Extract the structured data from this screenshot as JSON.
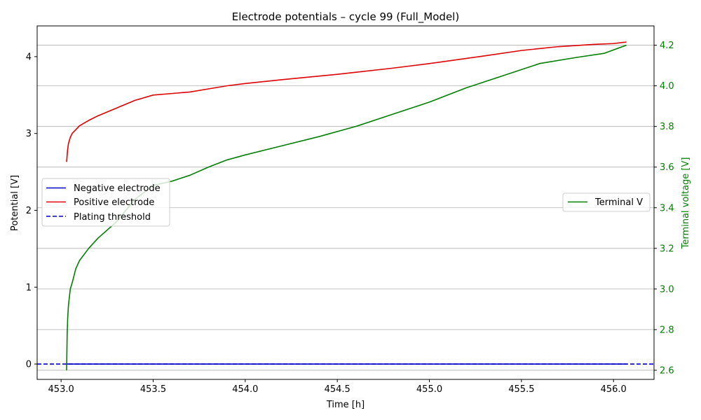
{
  "chart_data": {
    "type": "line",
    "title": "Electrode potentials – cycle 99 (Full_Model)",
    "xlabel": "Time [h]",
    "ylabel_left": "Potential [V]",
    "ylabel_right": "Terminal voltage [V]",
    "xlim": [
      452.87,
      456.22
    ],
    "ylim_left": [
      -0.2,
      4.4
    ],
    "ylim_right": [
      2.555,
      4.295
    ],
    "x_ticks": [
      "453.0",
      "453.5",
      "454.0",
      "454.5",
      "455.0",
      "455.5",
      "456.0"
    ],
    "y_left_ticks": [
      "0",
      "1",
      "2",
      "3",
      "4"
    ],
    "y_right_ticks": [
      "2.6",
      "2.8",
      "3.0",
      "3.2",
      "3.4",
      "3.6",
      "3.8",
      "4.0",
      "4.2"
    ],
    "grid": "horizontal lines at right-axis ticks",
    "legend_left": {
      "placement": "center-left",
      "entries": [
        "Negative electrode",
        "Positive electrode",
        "Plating threshold"
      ]
    },
    "legend_right": {
      "placement": "center-right",
      "entries": [
        "Terminal V"
      ]
    },
    "colors": {
      "negative": "#0000cc",
      "positive": "#e00000",
      "threshold": "#0000cc",
      "terminal": "#007f00",
      "right_axis": "#007f00"
    },
    "series": [
      {
        "name": "Negative electrode",
        "axis": "left",
        "style": "solid",
        "x": [
          453.03,
          453.5,
          454.0,
          454.5,
          455.0,
          455.5,
          456.0,
          456.07
        ],
        "y": [
          0.0,
          0.0,
          0.0,
          0.0,
          0.0,
          0.0,
          0.0,
          0.0
        ]
      },
      {
        "name": "Positive electrode",
        "axis": "left",
        "style": "solid",
        "x": [
          453.03,
          453.035,
          453.04,
          453.05,
          453.06,
          453.08,
          453.1,
          453.15,
          453.2,
          453.3,
          453.4,
          453.5,
          453.6,
          453.7,
          453.8,
          453.9,
          454.0,
          454.2,
          454.5,
          454.8,
          455.0,
          455.3,
          455.5,
          455.7,
          455.9,
          456.0,
          456.07
        ],
        "y": [
          2.63,
          2.78,
          2.87,
          2.95,
          3.0,
          3.05,
          3.1,
          3.17,
          3.23,
          3.33,
          3.43,
          3.5,
          3.52,
          3.54,
          3.58,
          3.62,
          3.65,
          3.7,
          3.77,
          3.85,
          3.91,
          4.01,
          4.08,
          4.13,
          4.16,
          4.17,
          4.19
        ]
      },
      {
        "name": "Plating threshold",
        "axis": "left",
        "style": "dashed",
        "x": [
          452.87,
          456.22
        ],
        "y": [
          0.0,
          0.0
        ]
      },
      {
        "name": "Terminal V",
        "axis": "right",
        "style": "solid",
        "x": [
          453.03,
          453.033,
          453.036,
          453.04,
          453.05,
          453.06,
          453.08,
          453.1,
          453.15,
          453.2,
          453.3,
          453.4,
          453.5,
          453.6,
          453.7,
          453.8,
          453.9,
          454.0,
          454.2,
          454.4,
          454.6,
          454.8,
          455.0,
          455.2,
          455.4,
          455.6,
          455.8,
          455.95,
          456.07
        ],
        "y": [
          2.6,
          2.78,
          2.86,
          2.92,
          3.0,
          3.03,
          3.1,
          3.14,
          3.2,
          3.25,
          3.33,
          3.44,
          3.51,
          3.53,
          3.56,
          3.6,
          3.635,
          3.66,
          3.705,
          3.75,
          3.8,
          3.86,
          3.92,
          3.99,
          4.05,
          4.11,
          4.14,
          4.16,
          4.2
        ]
      }
    ]
  }
}
